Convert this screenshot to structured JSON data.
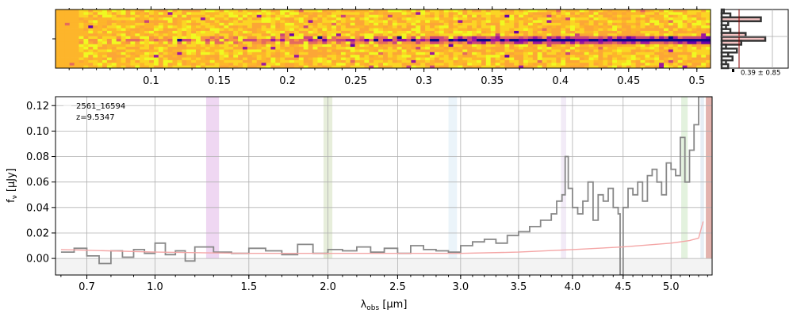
{
  "chart_data": [
    {
      "type": "heatmap",
      "panel": "2D spectrum",
      "description_units": "top tick labels in same units as printed",
      "top_ticks": [
        "0.1",
        "0.15",
        "0.2",
        "0.25",
        "0.3",
        "0.35",
        "0.4",
        "0.45",
        "0.5"
      ],
      "top_tick_values": [
        0.1,
        0.15,
        0.2,
        0.25,
        0.3,
        0.35,
        0.4,
        0.45,
        0.5
      ],
      "xlim": [
        0.03,
        0.51
      ],
      "colormap": "plasma",
      "trace_row_fraction": 0.5,
      "trace_brightens_with": "x"
    },
    {
      "type": "histogram",
      "panel": "spatial profile",
      "annotation": "0.39 ± 0.85",
      "values": [
        0.05,
        0.2,
        0.9,
        0.15,
        0.1,
        0.2,
        0.55,
        1.0,
        0.45,
        0.1,
        0.35,
        0.15,
        0.25,
        0.1,
        0.15
      ],
      "line_color": "#8b0000",
      "fill_color": "#f4c2c2"
    },
    {
      "type": "line",
      "panel": "1D spectrum",
      "xlabel_main": "λ",
      "xlabel_sub": "obs",
      "xlabel_unit": "[μm]",
      "ylabel_main": "f",
      "ylabel_sub": "ν",
      "ylabel_unit": "[μJy]",
      "xlim": [
        0.58,
        5.45
      ],
      "ylim": [
        -0.013,
        0.127
      ],
      "x_scale": "power",
      "x_scale_power": 0.5,
      "x_ticks": [
        "0.7",
        "1.0",
        "1.5",
        "2.0",
        "2.5",
        "3.0",
        "3.5",
        "4.0",
        "4.5",
        "5.0"
      ],
      "x_tick_values": [
        0.7,
        1.0,
        1.5,
        2.0,
        2.5,
        3.0,
        3.5,
        4.0,
        4.5,
        5.0
      ],
      "y_ticks": [
        "0.00",
        "0.02",
        "0.04",
        "0.06",
        "0.08",
        "0.10",
        "0.12"
      ],
      "y_tick_values": [
        0.0,
        0.02,
        0.04,
        0.06,
        0.08,
        0.1,
        0.12
      ],
      "grid": true,
      "legend_name": "2561_16594",
      "legend_z": "z=9.5347",
      "series": [
        {
          "color": "#888888",
          "x": [
            0.6,
            0.65,
            0.7,
            0.75,
            0.8,
            0.85,
            0.9,
            0.95,
            1.0,
            1.05,
            1.1,
            1.15,
            1.2,
            1.3,
            1.4,
            1.5,
            1.6,
            1.7,
            1.8,
            1.9,
            2.0,
            2.1,
            2.2,
            2.3,
            2.4,
            2.5,
            2.6,
            2.7,
            2.8,
            2.9,
            3.0,
            3.1,
            3.2,
            3.3,
            3.4,
            3.5,
            3.6,
            3.7,
            3.8,
            3.85,
            3.9,
            3.93,
            3.96,
            4.0,
            4.05,
            4.1,
            4.15,
            4.2,
            4.25,
            4.3,
            4.35,
            4.4,
            4.45,
            4.47,
            4.5,
            4.55,
            4.6,
            4.65,
            4.7,
            4.75,
            4.8,
            4.85,
            4.9,
            4.95,
            5.0,
            5.05,
            5.1,
            5.15,
            5.2,
            5.25,
            5.3,
            5.35
          ],
          "y": [
            0.005,
            0.008,
            0.002,
            -0.004,
            0.006,
            0.001,
            0.007,
            0.004,
            0.012,
            0.003,
            0.006,
            -0.002,
            0.009,
            0.005,
            0.004,
            0.008,
            0.006,
            0.003,
            0.011,
            0.004,
            0.007,
            0.006,
            0.009,
            0.005,
            0.008,
            0.004,
            0.01,
            0.007,
            0.006,
            0.005,
            0.01,
            0.013,
            0.015,
            0.012,
            0.018,
            0.021,
            0.025,
            0.03,
            0.035,
            0.045,
            0.05,
            0.08,
            0.055,
            0.04,
            0.035,
            0.045,
            0.06,
            0.03,
            0.05,
            0.045,
            0.055,
            0.04,
            0.035,
            -0.013,
            0.04,
            0.055,
            0.05,
            0.06,
            0.045,
            0.065,
            0.07,
            0.06,
            0.05,
            0.075,
            0.07,
            0.065,
            0.095,
            0.06,
            0.085,
            0.105,
            0.127,
            0.127
          ]
        },
        {
          "color": "#f4a6a6",
          "x": [
            0.6,
            1.0,
            1.5,
            2.0,
            2.5,
            3.0,
            3.5,
            4.0,
            4.5,
            5.0,
            5.2,
            5.3,
            5.35
          ],
          "y": [
            0.007,
            0.005,
            0.004,
            0.004,
            0.004,
            0.004,
            0.005,
            0.007,
            0.009,
            0.012,
            0.014,
            0.016,
            0.029
          ]
        }
      ],
      "shaded_bands": [
        {
          "x": [
            1.26,
            1.33
          ],
          "color": "#e9c9ee"
        },
        {
          "x": [
            1.97,
            2.03
          ],
          "color": "#dfe8cf"
        },
        {
          "x": [
            2.9,
            2.97
          ],
          "color": "#e4f0f8"
        },
        {
          "x": [
            3.89,
            3.94
          ],
          "color": "#eee4f4"
        },
        {
          "x": [
            5.11,
            5.18
          ],
          "color": "#d9edd3"
        },
        {
          "x": [
            5.32,
            5.36
          ],
          "color": "#dde8f2"
        },
        {
          "x": [
            5.38,
            5.45
          ],
          "color": "#d99a93"
        }
      ]
    }
  ]
}
